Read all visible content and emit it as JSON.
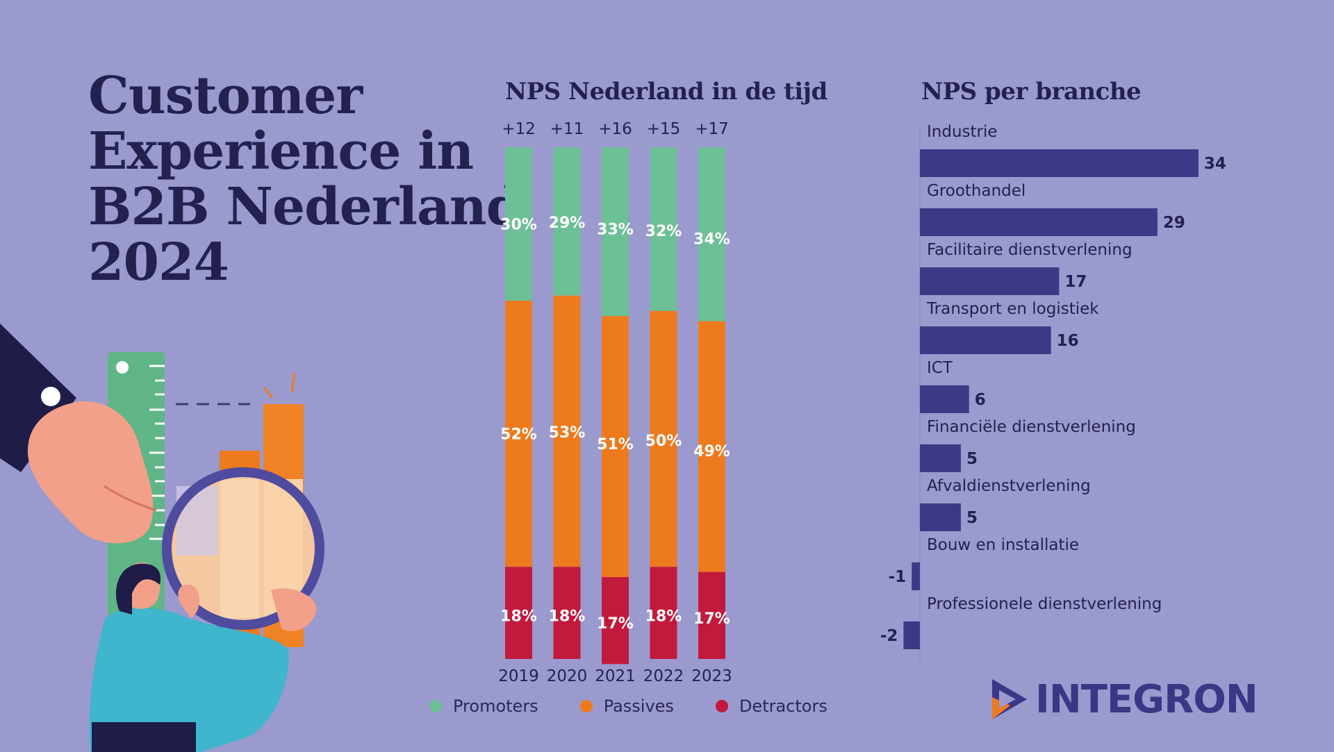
{
  "page": {
    "title_lines": [
      "Customer",
      "Experience in",
      "B2B Nederland",
      "2024"
    ],
    "logo_text": "INTEGRON"
  },
  "colors": {
    "background": "#9a9ace",
    "navy": "#23214f",
    "promoters": "#6dbf96",
    "passives": "#ee7a1e",
    "detractors": "#c21a3c",
    "branche_bar": "#3c3a86"
  },
  "chart_data": [
    {
      "type": "bar",
      "stacked": true,
      "title": "NPS Nederland in de tijd",
      "categories": [
        "2019",
        "2020",
        "2021",
        "2022",
        "2023"
      ],
      "nps_labels": [
        "+12",
        "+11",
        "+16",
        "+15",
        "+17"
      ],
      "series": [
        {
          "name": "Promoters",
          "values": [
            30,
            29,
            33,
            32,
            34
          ],
          "color": "#6dbf96"
        },
        {
          "name": "Passives",
          "values": [
            52,
            53,
            51,
            50,
            49
          ],
          "color": "#ee7a1e"
        },
        {
          "name": "Detractors",
          "values": [
            18,
            18,
            17,
            18,
            17
          ],
          "color": "#c21a3c"
        }
      ],
      "value_suffix": "%",
      "legend": "bottom",
      "ylim": [
        0,
        100
      ],
      "grid": false
    },
    {
      "type": "bar",
      "orientation": "horizontal",
      "title": "NPS per branche",
      "categories": [
        "Industrie",
        "Groothandel",
        "Facilitaire dienstverlening",
        "Transport en logistiek",
        "ICT",
        "Financiële dienstverlening",
        "Afvaldienstverlening",
        "Bouw en installatie",
        "Professionele dienstverlening"
      ],
      "values": [
        34,
        29,
        17,
        16,
        6,
        5,
        5,
        -1,
        -2
      ],
      "xlim": [
        -2,
        34
      ],
      "grid": false
    }
  ]
}
